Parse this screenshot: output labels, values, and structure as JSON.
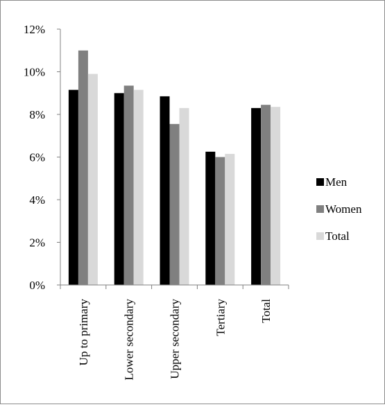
{
  "chart_data": {
    "type": "bar",
    "categories": [
      "Up to primary",
      "Lower secondary",
      "Upper secondary",
      "Tertiary",
      "Total"
    ],
    "series": [
      {
        "name": "Men",
        "color": "#000000",
        "values": [
          9.15,
          9.0,
          8.85,
          6.25,
          8.3
        ]
      },
      {
        "name": "Women",
        "color": "#808080",
        "values": [
          11.0,
          9.35,
          7.55,
          6.0,
          8.45
        ]
      },
      {
        "name": "Total",
        "color": "#d9d9d9",
        "values": [
          9.9,
          9.15,
          8.3,
          6.15,
          8.35
        ]
      }
    ],
    "ylim": [
      0,
      12
    ],
    "yticks": [
      "0%",
      "2%",
      "4%",
      "6%",
      "8%",
      "10%",
      "12%"
    ],
    "ytick_values": [
      0,
      2,
      4,
      6,
      8,
      10,
      12
    ],
    "grid": false,
    "legend_position": "right",
    "title": "",
    "xlabel": "",
    "ylabel": ""
  }
}
